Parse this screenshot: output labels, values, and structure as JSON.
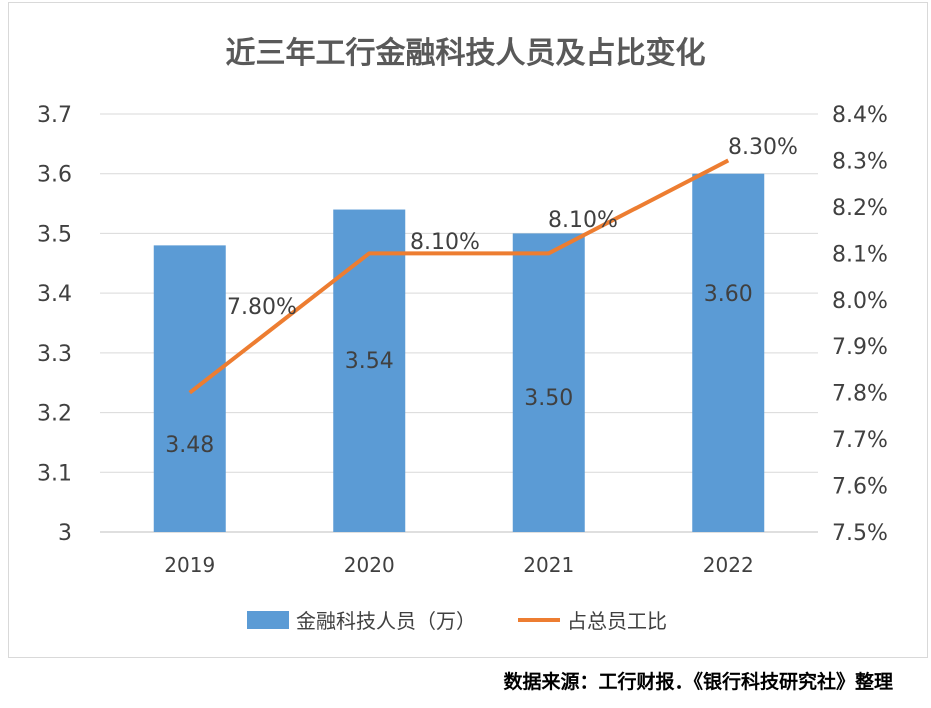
{
  "chart_data": {
    "type": "bar+line",
    "title": "近三年工行金融科技人员及占比变化",
    "categories": [
      "2019",
      "2020",
      "2021",
      "2022"
    ],
    "series": [
      {
        "name": "金融科技人员（万）",
        "type": "bar",
        "axis": "left",
        "values": [
          3.48,
          3.54,
          3.5,
          3.6
        ],
        "labels": [
          "3.48",
          "3.54",
          "3.50",
          "3.60"
        ],
        "color": "#5b9bd5"
      },
      {
        "name": "占总员工比",
        "type": "line",
        "axis": "right",
        "values": [
          7.8,
          8.1,
          8.1,
          8.3
        ],
        "labels": [
          "7.80%",
          "8.10%",
          "8.10%",
          "8.30%"
        ],
        "color": "#ed7d31"
      }
    ],
    "left_axis": {
      "ylim": [
        3,
        3.7
      ],
      "ticks": [
        "3",
        "3.1",
        "3.2",
        "3.3",
        "3.4",
        "3.5",
        "3.6",
        "3.7"
      ]
    },
    "right_axis": {
      "ylim": [
        7.5,
        8.4
      ],
      "ticks": [
        "7.5%",
        "7.6%",
        "7.7%",
        "7.8%",
        "7.9%",
        "8.0%",
        "8.1%",
        "8.2%",
        "8.3%",
        "8.4%"
      ]
    },
    "grid": true,
    "legend": "bottom"
  },
  "source": "数据来源：工行财报．《银行科技研究社》整理",
  "watermark": "银行科技研究社"
}
